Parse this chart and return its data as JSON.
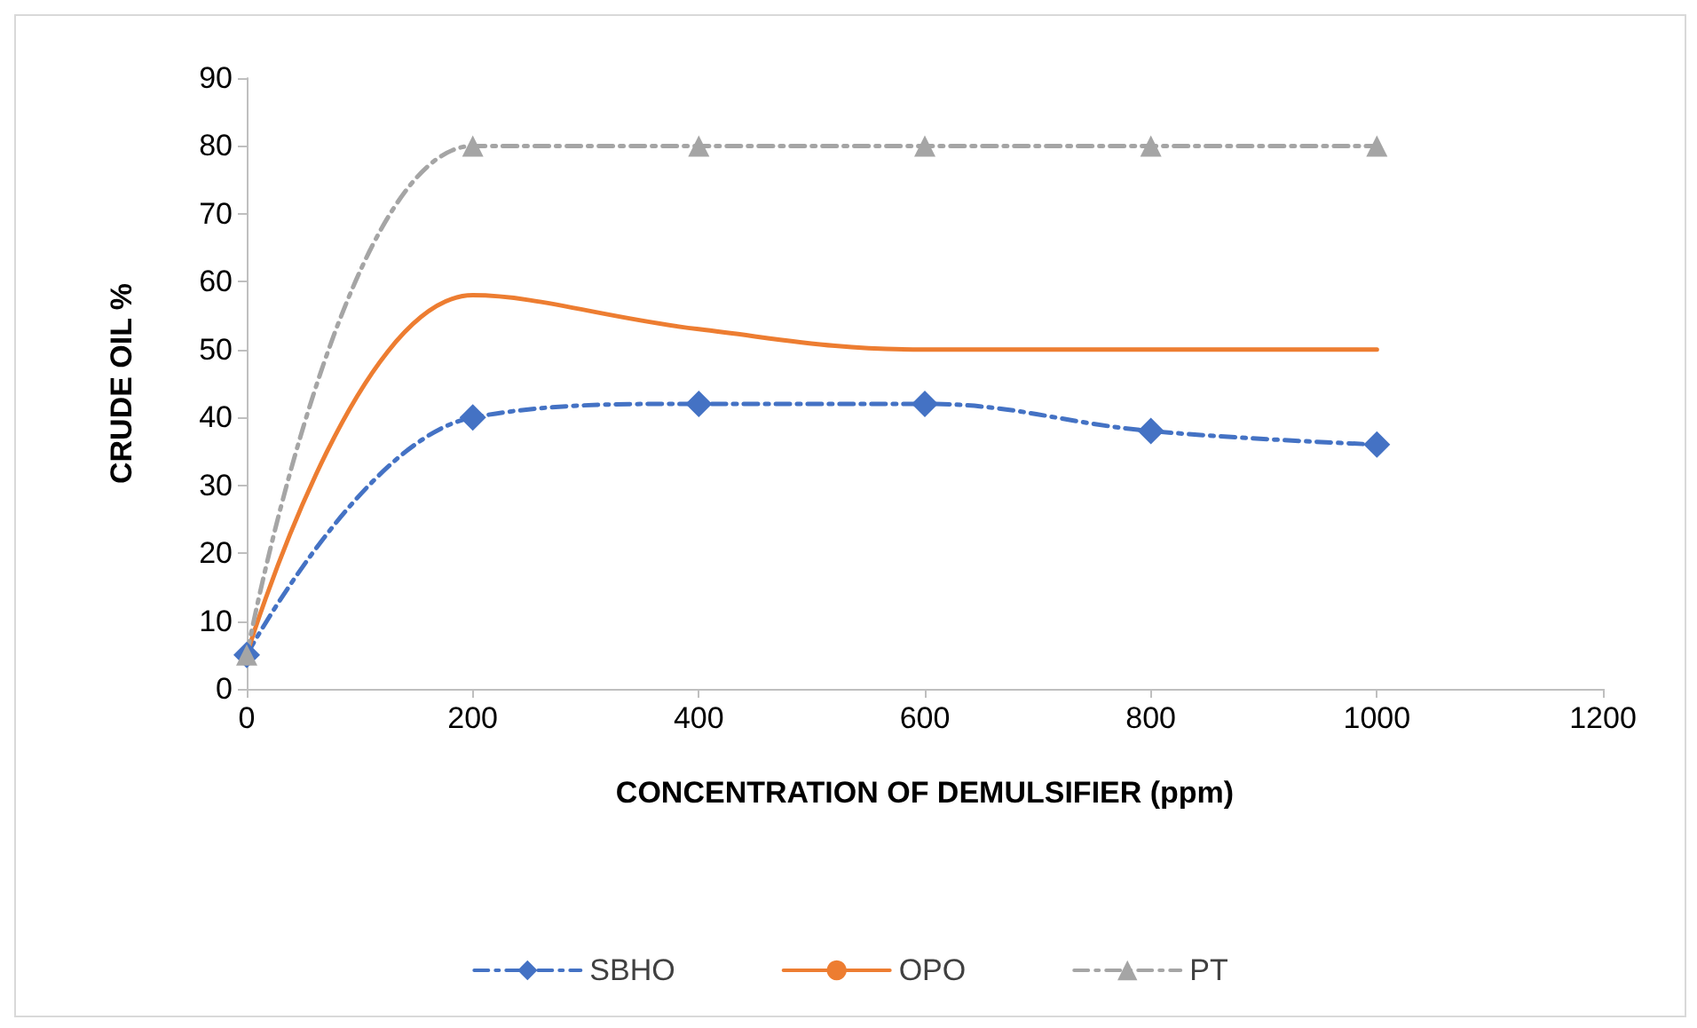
{
  "chart_data": {
    "type": "line",
    "xlabel": "CONCENTRATION OF DEMULSIFIER (ppm)",
    "ylabel": "CRUDE OIL %",
    "x": [
      0,
      200,
      400,
      600,
      800,
      1000
    ],
    "series": [
      {
        "name": "SBHO",
        "color": "#4472c4",
        "values": [
          5,
          40,
          42,
          42,
          38,
          36
        ],
        "marker": "diamond",
        "line_style": "dashed"
      },
      {
        "name": "OPO",
        "color": "#ed7d31",
        "values": [
          5,
          58,
          53,
          50,
          50,
          50
        ],
        "marker": "none",
        "line_style": "solid"
      },
      {
        "name": "PT",
        "color": "#a5a5a5",
        "values": [
          5,
          80,
          80,
          80,
          80,
          80
        ],
        "marker": "triangle",
        "line_style": "dashed"
      }
    ],
    "xlim": [
      0,
      1200
    ],
    "xticks": [
      0,
      200,
      400,
      600,
      800,
      1000,
      1200
    ],
    "ylim": [
      0,
      90
    ],
    "yticks": [
      0,
      10,
      20,
      30,
      40,
      50,
      60,
      70,
      80,
      90
    ],
    "grid": false,
    "legend": "bottom"
  }
}
